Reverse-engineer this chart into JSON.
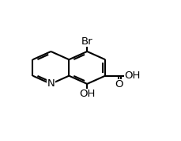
{
  "background": "#ffffff",
  "bond_color": "#000000",
  "lw": 1.5,
  "r_ring": 0.118,
  "lc": [
    0.27,
    0.5
  ],
  "font_size": 9.5,
  "label_N": "N",
  "label_Br": "Br",
  "label_OH": "OH",
  "label_O": "O",
  "label_OH2": "OH"
}
